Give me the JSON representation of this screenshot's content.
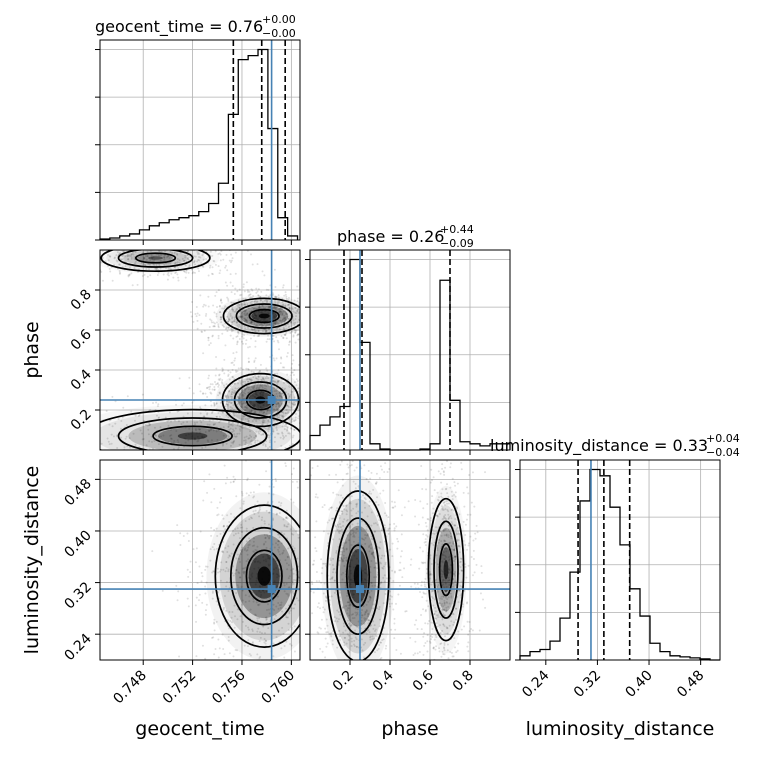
{
  "figure": {
    "titles": {
      "geocent_time": {
        "main": "geocent_time = 0.76",
        "sup": "+0.00",
        "sub": "−0.00"
      },
      "phase": {
        "main": "phase = 0.26",
        "sup": "+0.44",
        "sub": "−0.09"
      },
      "luminosity_distance": {
        "main": "luminosity_distance = 0.33",
        "sup": "+0.04",
        "sub": "−0.04"
      }
    },
    "axis_labels": {
      "geocent_time": "geocent_time",
      "phase": "phase",
      "luminosity_distance": "luminosity_distance"
    },
    "colors": {
      "truth": "#4682b4",
      "lines": "#000000",
      "grid": "#b0b0b0"
    }
  },
  "chart_data": {
    "type": "corner",
    "parameters": [
      "geocent_time",
      "phase",
      "luminosity_distance"
    ],
    "ranges": {
      "geocent_time": [
        0.7445,
        0.7607
      ],
      "phase": [
        0.0,
        1.0
      ],
      "luminosity_distance": [
        0.2,
        0.51
      ]
    },
    "ticks": {
      "geocent_time": [
        0.748,
        0.752,
        0.756,
        0.76
      ],
      "phase": [
        0.2,
        0.4,
        0.6,
        0.8
      ],
      "luminosity_distance": [
        0.24,
        0.32,
        0.4,
        0.48
      ]
    },
    "tick_labels": {
      "geocent_time": [
        "0.748",
        "0.752",
        "0.756",
        "0.760"
      ],
      "phase": [
        "0.2",
        "0.4",
        "0.6",
        "0.8"
      ],
      "luminosity_distance": [
        "0.24",
        "0.32",
        "0.40",
        "0.48"
      ]
    },
    "truths": {
      "geocent_time": 0.7584,
      "phase": 0.25,
      "luminosity_distance": 0.31
    },
    "quantiles": {
      "geocent_time": [
        0.7553,
        0.7576,
        0.7595
      ],
      "phase": [
        0.17,
        0.26,
        0.7
      ],
      "luminosity_distance": [
        0.29,
        0.33,
        0.37
      ]
    },
    "histograms": {
      "geocent_time": {
        "edges": [
          0.7445,
          0.7453,
          0.7461,
          0.7469,
          0.7477,
          0.7485,
          0.7493,
          0.7501,
          0.7509,
          0.7517,
          0.7525,
          0.7533,
          0.7541,
          0.7549,
          0.7557,
          0.7565,
          0.7573,
          0.7581,
          0.7589,
          0.7597,
          0.7605
        ],
        "counts": [
          0.005,
          0.01,
          0.02,
          0.03,
          0.05,
          0.07,
          0.085,
          0.1,
          0.11,
          0.12,
          0.14,
          0.18,
          0.28,
          0.62,
          0.89,
          0.91,
          0.94,
          0.55,
          0.11,
          0.02
        ]
      },
      "phase": {
        "edges": [
          0.0,
          0.05,
          0.1,
          0.15,
          0.2,
          0.25,
          0.3,
          0.35,
          0.4,
          0.45,
          0.5,
          0.55,
          0.6,
          0.65,
          0.7,
          0.75,
          0.8,
          0.85,
          0.9,
          0.95,
          1.0
        ],
        "counts": [
          0.07,
          0.12,
          0.16,
          0.21,
          0.92,
          0.52,
          0.03,
          0.005,
          0.0,
          0.0,
          0.0,
          0.005,
          0.03,
          0.82,
          0.24,
          0.04,
          0.03,
          0.02,
          0.03,
          0.03
        ]
      },
      "luminosity_distance": {
        "edges": [
          0.2,
          0.2155,
          0.231,
          0.2465,
          0.262,
          0.2775,
          0.293,
          0.3085,
          0.324,
          0.3395,
          0.355,
          0.3705,
          0.386,
          0.4015,
          0.417,
          0.4325,
          0.448,
          0.4635,
          0.479,
          0.4945,
          0.51
        ],
        "counts": [
          0.02,
          0.04,
          0.05,
          0.09,
          0.2,
          0.42,
          0.76,
          0.91,
          0.88,
          0.73,
          0.55,
          0.34,
          0.21,
          0.08,
          0.04,
          0.02,
          0.015,
          0.01,
          0.005,
          0.0
        ]
      }
    },
    "density_peaks_2d": {
      "geocent_time_vs_phase": [
        {
          "center": [
            0.7578,
            0.67
          ],
          "spread": [
            0.0015,
            0.04
          ],
          "weight": 1.0
        },
        {
          "center": [
            0.7575,
            0.25
          ],
          "spread": [
            0.0014,
            0.06
          ],
          "weight": 1.0
        },
        {
          "center": [
            0.752,
            0.07
          ],
          "spread": [
            0.004,
            0.06
          ],
          "weight": 0.6
        },
        {
          "center": [
            0.749,
            0.96
          ],
          "spread": [
            0.002,
            0.03
          ],
          "weight": 0.5
        }
      ],
      "geocent_time_vs_luminosity_distance": [
        {
          "center": [
            0.7578,
            0.33
          ],
          "spread": [
            0.0018,
            0.05
          ],
          "weight": 1.0
        }
      ],
      "phase_vs_luminosity_distance": [
        {
          "center": [
            0.24,
            0.33
          ],
          "spread": [
            0.07,
            0.06
          ],
          "weight": 1.0
        },
        {
          "center": [
            0.68,
            0.34
          ],
          "spread": [
            0.04,
            0.05
          ],
          "weight": 0.75
        }
      ]
    }
  }
}
